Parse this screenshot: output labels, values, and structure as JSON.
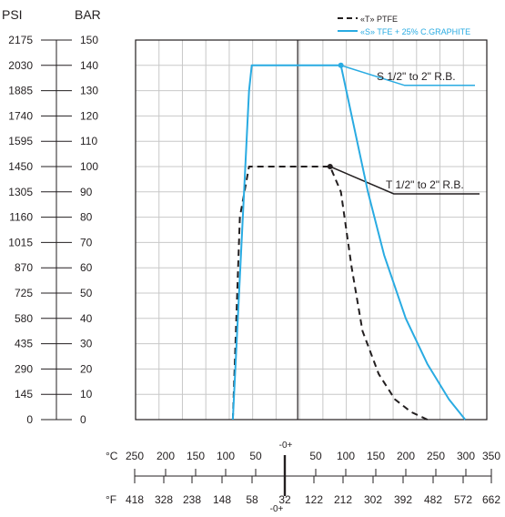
{
  "chart_data": {
    "type": "line",
    "x_unit_c": "°C",
    "x_unit_f": "°F",
    "zero_label": "-0+",
    "celsius_ticks": [
      "250",
      "200",
      "150",
      "100",
      "50",
      "50",
      "100",
      "150",
      "200",
      "250",
      "300",
      "350"
    ],
    "celsius_values": [
      -250,
      -200,
      -150,
      -100,
      -50,
      50,
      100,
      150,
      200,
      250,
      300,
      350
    ],
    "fahrenheit_ticks": [
      "418",
      "328",
      "238",
      "148",
      "58",
      "32",
      "122",
      "212",
      "302",
      "392",
      "482",
      "572",
      "662"
    ],
    "psi_label": "PSI",
    "bar_label": "BAR",
    "psi_ticks": [
      "2175",
      "2030",
      "1885",
      "1740",
      "1595",
      "1450",
      "1305",
      "1160",
      "1015",
      "870",
      "725",
      "580",
      "435",
      "290",
      "145",
      "0"
    ],
    "bar_ticks": [
      "150",
      "140",
      "130",
      "120",
      "110",
      "100",
      "90",
      "80",
      "70",
      "60",
      "50",
      "40",
      "30",
      "20",
      "10",
      "0"
    ],
    "bar_values": [
      150,
      140,
      130,
      120,
      110,
      100,
      90,
      80,
      70,
      60,
      50,
      40,
      30,
      20,
      10,
      0
    ],
    "xlim_c": [
      -300,
      350
    ],
    "ylim_bar": [
      0,
      150
    ],
    "grid": true,
    "legend_position": "top-right",
    "series": [
      {
        "name": "«T» PTFE",
        "color": "#231f20",
        "dash": true,
        "label": "T 1/2\" to 2\" R.B.",
        "points": [
          [
            -120,
            0
          ],
          [
            -107,
            80
          ],
          [
            -90,
            100
          ],
          [
            60,
            100
          ],
          [
            80,
            90
          ],
          [
            100,
            60
          ],
          [
            120,
            35
          ],
          [
            150,
            18
          ],
          [
            180,
            8
          ],
          [
            210,
            3
          ],
          [
            240,
            0
          ]
        ]
      },
      {
        "name": "«S» TFE + 25% C.GRAPHITE",
        "color": "#29abe2",
        "dash": false,
        "label": "S 1/2\" to 2\" R.B.",
        "points": [
          [
            -120,
            0
          ],
          [
            -90,
            130
          ],
          [
            -85,
            140
          ],
          [
            80,
            140
          ],
          [
            100,
            120
          ],
          [
            130,
            90
          ],
          [
            160,
            65
          ],
          [
            200,
            40
          ],
          [
            240,
            22
          ],
          [
            280,
            8
          ],
          [
            310,
            0
          ]
        ]
      }
    ]
  }
}
